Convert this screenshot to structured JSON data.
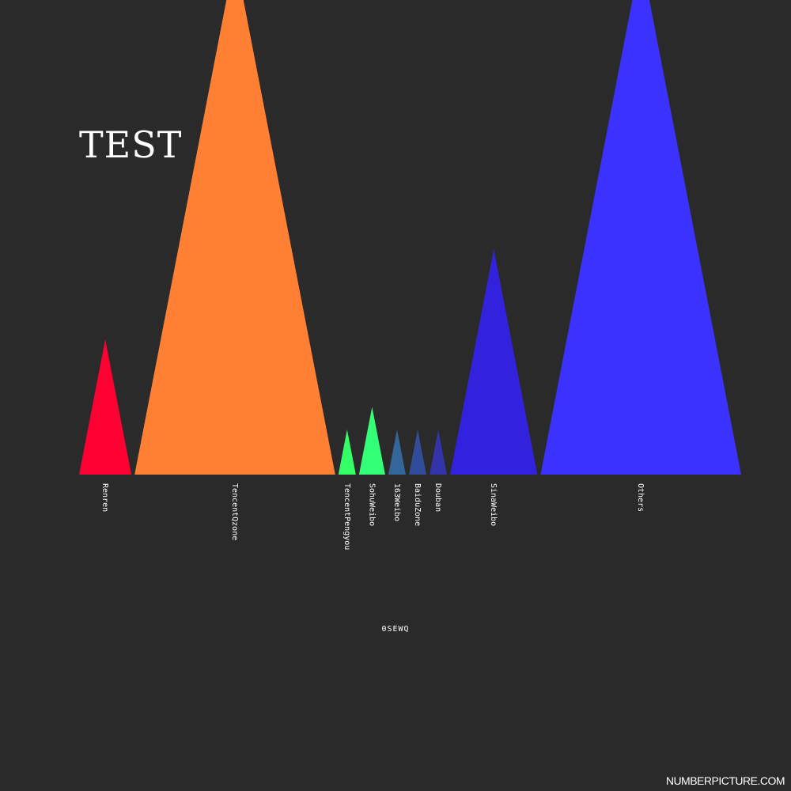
{
  "chart_data": {
    "type": "bar",
    "title": "TEST",
    "xlabel": "0SEWQ",
    "ylabel": "",
    "categories": [
      "Renren",
      "TencentQzone",
      "TencentPengyou",
      "SohuWeibo",
      "163Weibo",
      "BaiduZone",
      "Douban",
      "SinaWeibo",
      "Others"
    ],
    "values": [
      6,
      23,
      2,
      3,
      2,
      2,
      2,
      10,
      23
    ],
    "colors": [
      "#ff0033",
      "#ff8033",
      "#33ff66",
      "#33ff77",
      "#336699",
      "#334c99",
      "#3333aa",
      "#3322dd",
      "#3c32ff"
    ]
  },
  "watermark": "NUMBERPICTURE.COM"
}
